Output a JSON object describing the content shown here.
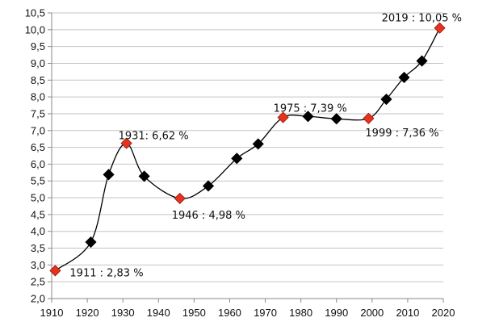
{
  "chart_data": {
    "type": "line",
    "title": "",
    "xlabel": "",
    "ylabel": "",
    "xlim": [
      1910,
      2020
    ],
    "ylim": [
      2.0,
      10.5
    ],
    "grid": "horizontal",
    "legend": "none",
    "x_ticks": [
      "1910",
      "1920",
      "1930",
      "1940",
      "1950",
      "1960",
      "1970",
      "1980",
      "1990",
      "2000",
      "2010",
      "2020"
    ],
    "y_ticks": [
      "2,0",
      "2,5",
      "3,0",
      "3,5",
      "4,0",
      "4,5",
      "5,0",
      "5,5",
      "6,0",
      "6,5",
      "7,0",
      "7,5",
      "8,0",
      "8,5",
      "9,0",
      "9,5",
      "10,0",
      "10,5"
    ],
    "series": [
      {
        "color": "#000000",
        "points": [
          {
            "x": 1911,
            "y": 2.83,
            "highlight": true
          },
          {
            "x": 1921,
            "y": 3.68
          },
          {
            "x": 1926,
            "y": 5.69
          },
          {
            "x": 1931,
            "y": 6.62,
            "highlight": true
          },
          {
            "x": 1936,
            "y": 5.64
          },
          {
            "x": 1946,
            "y": 4.98,
            "highlight": true
          },
          {
            "x": 1954,
            "y": 5.35
          },
          {
            "x": 1962,
            "y": 6.17
          },
          {
            "x": 1968,
            "y": 6.6
          },
          {
            "x": 1975,
            "y": 7.39,
            "highlight": true
          },
          {
            "x": 1982,
            "y": 7.42
          },
          {
            "x": 1990,
            "y": 7.35
          },
          {
            "x": 1999,
            "y": 7.36,
            "highlight": true
          },
          {
            "x": 2004,
            "y": 7.93
          },
          {
            "x": 2009,
            "y": 8.58
          },
          {
            "x": 2014,
            "y": 9.07
          },
          {
            "x": 2019,
            "y": 10.05,
            "highlight": true
          }
        ]
      }
    ],
    "annotations": [
      {
        "x": 1911,
        "y": 2.83,
        "text": "1911 : 2,83 %"
      },
      {
        "x": 1931,
        "y": 6.62,
        "text": "1931: 6,62 %"
      },
      {
        "x": 1946,
        "y": 4.98,
        "text": "1946 : 4,98 %"
      },
      {
        "x": 1975,
        "y": 7.39,
        "text": "1975 : 7,39 %"
      },
      {
        "x": 1999,
        "y": 7.36,
        "text": "1999 : 7,36 %"
      },
      {
        "x": 2019,
        "y": 10.05,
        "text": "2019 : 10,05 %"
      }
    ],
    "colors": {
      "marker": "#000000",
      "highlight_marker": "#e8321e",
      "line": "#000000",
      "grid": "#c4c4c4",
      "axis": "#8a8a8a"
    }
  }
}
